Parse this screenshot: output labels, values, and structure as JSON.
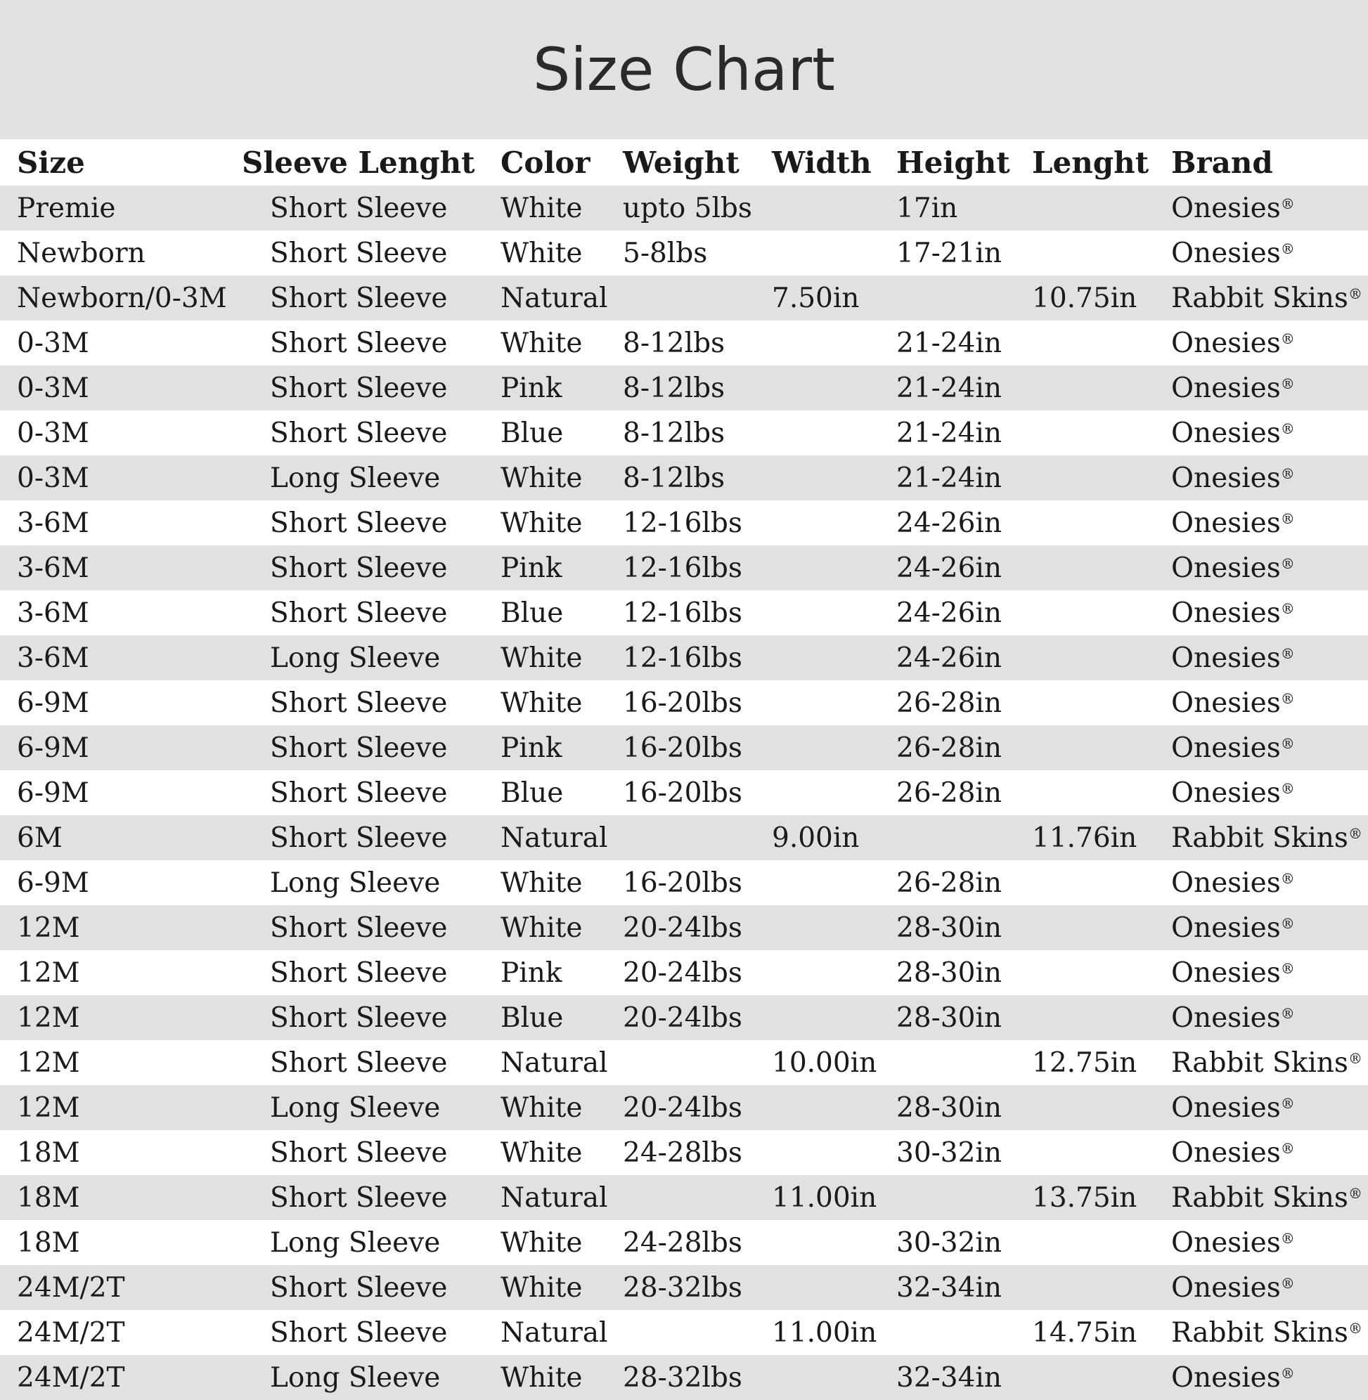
{
  "title": "Size Chart",
  "columns": [
    "Size",
    "Sleeve Lenght",
    "Color",
    "Weight",
    "Width",
    "Height",
    "Lenght",
    "Brand"
  ],
  "trademark": "®",
  "rows": [
    [
      "Premie",
      "Short Sleeve",
      "White",
      "upto 5lbs",
      "",
      "17in",
      "",
      "Onesies"
    ],
    [
      "Newborn",
      "Short Sleeve",
      "White",
      "5-8lbs",
      "",
      "17-21in",
      "",
      "Onesies"
    ],
    [
      "Newborn/0-3M",
      "Short Sleeve",
      "Natural",
      "",
      "7.50in",
      "",
      "10.75in",
      "Rabbit Skins"
    ],
    [
      "0-3M",
      "Short Sleeve",
      "White",
      "8-12lbs",
      "",
      "21-24in",
      "",
      "Onesies"
    ],
    [
      "0-3M",
      "Short Sleeve",
      "Pink",
      "8-12lbs",
      "",
      "21-24in",
      "",
      "Onesies"
    ],
    [
      "0-3M",
      "Short Sleeve",
      "Blue",
      "8-12lbs",
      "",
      "21-24in",
      "",
      "Onesies"
    ],
    [
      "0-3M",
      "Long Sleeve",
      "White",
      "8-12lbs",
      "",
      "21-24in",
      "",
      "Onesies"
    ],
    [
      "3-6M",
      "Short Sleeve",
      "White",
      "12-16lbs",
      "",
      "24-26in",
      "",
      "Onesies"
    ],
    [
      "3-6M",
      "Short Sleeve",
      "Pink",
      "12-16lbs",
      "",
      "24-26in",
      "",
      "Onesies"
    ],
    [
      "3-6M",
      "Short Sleeve",
      "Blue",
      "12-16lbs",
      "",
      "24-26in",
      "",
      "Onesies"
    ],
    [
      "3-6M",
      "Long Sleeve",
      "White",
      "12-16lbs",
      "",
      "24-26in",
      "",
      "Onesies"
    ],
    [
      "6-9M",
      "Short Sleeve",
      "White",
      "16-20lbs",
      "",
      "26-28in",
      "",
      "Onesies"
    ],
    [
      "6-9M",
      "Short Sleeve",
      "Pink",
      "16-20lbs",
      "",
      "26-28in",
      "",
      "Onesies"
    ],
    [
      "6-9M",
      "Short Sleeve",
      "Blue",
      "16-20lbs",
      "",
      "26-28in",
      "",
      "Onesies"
    ],
    [
      "6M",
      "Short Sleeve",
      "Natural",
      "",
      "9.00in",
      "",
      "11.76in",
      "Rabbit Skins"
    ],
    [
      "6-9M",
      "Long Sleeve",
      "White",
      "16-20lbs",
      "",
      "26-28in",
      "",
      "Onesies"
    ],
    [
      "12M",
      "Short Sleeve",
      "White",
      "20-24lbs",
      "",
      "28-30in",
      "",
      "Onesies"
    ],
    [
      "12M",
      "Short Sleeve",
      "Pink",
      "20-24lbs",
      "",
      "28-30in",
      "",
      "Onesies"
    ],
    [
      "12M",
      "Short Sleeve",
      "Blue",
      "20-24lbs",
      "",
      "28-30in",
      "",
      "Onesies"
    ],
    [
      "12M",
      "Short Sleeve",
      "Natural",
      "",
      "10.00in",
      "",
      "12.75in",
      "Rabbit Skins"
    ],
    [
      "12M",
      "Long Sleeve",
      "White",
      "20-24lbs",
      "",
      "28-30in",
      "",
      "Onesies"
    ],
    [
      "18M",
      "Short Sleeve",
      "White",
      "24-28lbs",
      "",
      "30-32in",
      "",
      "Onesies"
    ],
    [
      "18M",
      "Short Sleeve",
      "Natural",
      "",
      "11.00in",
      "",
      "13.75in",
      "Rabbit Skins"
    ],
    [
      "18M",
      "Long Sleeve",
      "White",
      "24-28lbs",
      "",
      "30-32in",
      "",
      "Onesies"
    ],
    [
      "24M/2T",
      "Short Sleeve",
      "White",
      "28-32lbs",
      "",
      "32-34in",
      "",
      "Onesies"
    ],
    [
      "24M/2T",
      "Short Sleeve",
      "Natural",
      "",
      "11.00in",
      "",
      "14.75in",
      "Rabbit Skins"
    ],
    [
      "24M/2T",
      "Long Sleeve",
      "White",
      "28-32lbs",
      "",
      "32-34in",
      "",
      "Onesies"
    ]
  ]
}
